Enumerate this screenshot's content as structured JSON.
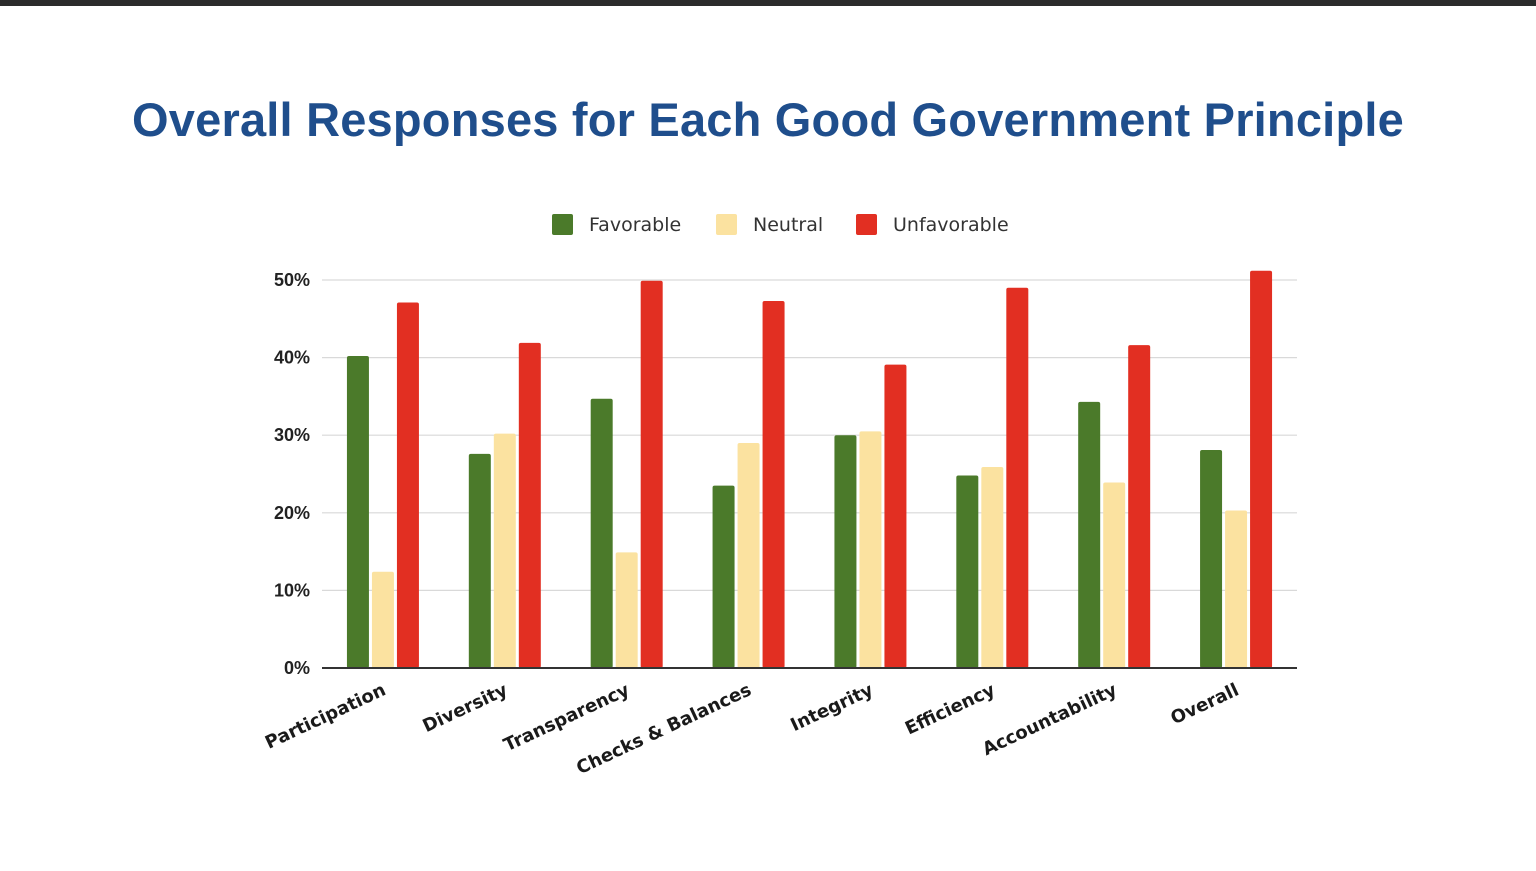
{
  "title": "Overall Responses for Each Good Government Principle",
  "colors": {
    "title": "#1f4e8c",
    "favorable": "#4b7a2a",
    "neutral": "#fbe2a0",
    "unfavorable": "#e22f22",
    "grid": "#d9d9d9",
    "axis": "#333333"
  },
  "chart_data": {
    "type": "bar",
    "title": "",
    "xlabel": "",
    "ylabel": "",
    "ylim": [
      0,
      50
    ],
    "y_ticks": [
      "0%",
      "10%",
      "20%",
      "30%",
      "40%",
      "50%"
    ],
    "y_tick_values": [
      0,
      10,
      20,
      30,
      40,
      50
    ],
    "grid": true,
    "legend_position": "top",
    "categories": [
      "Participation",
      "Diversity",
      "Transparency",
      "Checks & Balances",
      "Integrity",
      "Efficiency",
      "Accountability",
      "Overall"
    ],
    "series": [
      {
        "name": "Favorable",
        "color": "#4b7a2a",
        "values": [
          40.2,
          27.6,
          34.7,
          23.5,
          30.0,
          24.8,
          34.3,
          28.1
        ]
      },
      {
        "name": "Neutral",
        "color": "#fbe2a0",
        "values": [
          12.4,
          30.2,
          14.9,
          29.0,
          30.5,
          25.9,
          23.9,
          20.3
        ]
      },
      {
        "name": "Unfavorable",
        "color": "#e22f22",
        "values": [
          47.1,
          41.9,
          49.9,
          47.3,
          39.1,
          49.0,
          41.6,
          51.2
        ]
      }
    ]
  }
}
